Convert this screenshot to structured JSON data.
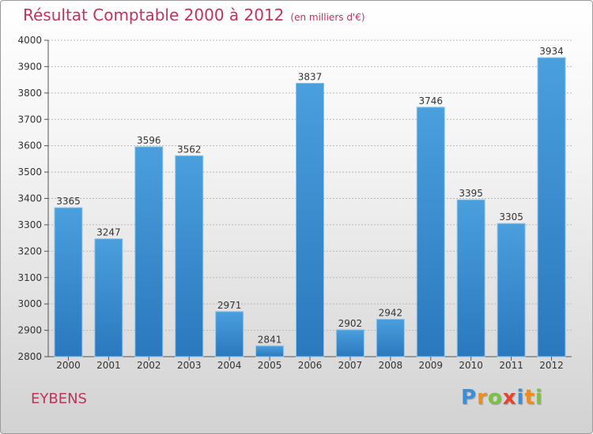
{
  "header": {
    "title": "Résultat Comptable 2000 à 2012",
    "subtitle": "(en milliers d'€)"
  },
  "footer": {
    "city": "EYBENS",
    "logo": {
      "letters": [
        "P",
        "r",
        "o",
        "x",
        "i",
        "t",
        "i"
      ],
      "colors": [
        "#3a8fd6",
        "#f08c1a",
        "#7cc242",
        "#e8432e",
        "#3a8fd6",
        "#f08c1a",
        "#7cc242"
      ]
    }
  },
  "chart_data": {
    "type": "bar",
    "title": "Résultat Comptable 2000 à 2012",
    "subtitle": "(en milliers d'€)",
    "xlabel": "",
    "ylabel": "",
    "categories": [
      "2000",
      "2001",
      "2002",
      "2003",
      "2004",
      "2005",
      "2006",
      "2007",
      "2008",
      "2009",
      "2010",
      "2011",
      "2012"
    ],
    "values": [
      3365,
      3247,
      3596,
      3562,
      2971,
      2841,
      3837,
      2902,
      2942,
      3746,
      3395,
      3305,
      3934
    ],
    "ylim": [
      2800,
      4000
    ],
    "yticks": [
      2800,
      2900,
      3000,
      3100,
      3200,
      3300,
      3400,
      3500,
      3600,
      3700,
      3800,
      3900,
      4000
    ],
    "grid": true,
    "bar_color": "#4a9fdd",
    "bar_color_dark": "#2a78be",
    "grid_color": "#b9b9b9"
  }
}
